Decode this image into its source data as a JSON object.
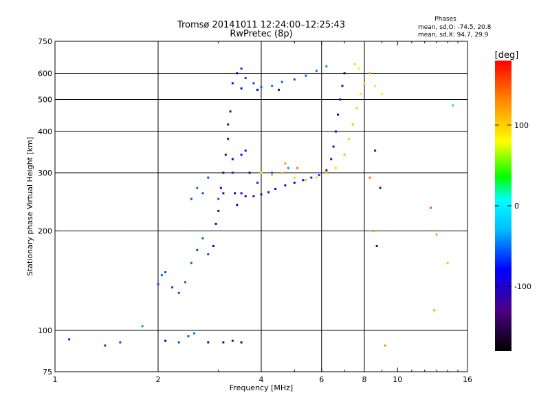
{
  "header": {
    "title_line1": "Tromsø 20141011 12:24:00–12:25:43",
    "title_line2": "RwPretec (8p)",
    "stats_title": "Phases",
    "stats_o": "mean, sd,O:  -74.5, 20.8",
    "stats_x": "mean, sd,X:  94.7, 29.9"
  },
  "chart_data": {
    "type": "scatter",
    "xlabel": "Frequency [MHz]",
    "ylabel": "Stationary phase Virtual Height [km]",
    "x_scale": "log",
    "y_scale": "log",
    "xlim": [
      1,
      16
    ],
    "ylim": [
      75,
      750
    ],
    "x_ticks": [
      1,
      2,
      4,
      6,
      8,
      10,
      16
    ],
    "x_tick_labels": [
      "1",
      "2",
      "4",
      "6",
      "8",
      "10",
      "16"
    ],
    "y_ticks": [
      75,
      100,
      200,
      300,
      400,
      500,
      600,
      750
    ],
    "y_tick_labels": [
      "75",
      "100",
      "200",
      "300",
      "400",
      "500",
      "600",
      "750"
    ],
    "grid_x": [
      2,
      4,
      6,
      8
    ],
    "grid_y": [
      100,
      200,
      300,
      400,
      500,
      600
    ],
    "grid": true,
    "colorbar": {
      "label": "[deg]",
      "range": [
        -180,
        180
      ],
      "ticks": [
        100,
        0,
        -100
      ],
      "tick_labels": [
        "100",
        "0",
        "-100"
      ],
      "colors": [
        "#000000",
        "#4b0082",
        "#0000ff",
        "#00ffff",
        "#00ff00",
        "#ffff00",
        "#ff8c00",
        "#ff0000"
      ]
    },
    "series": [
      {
        "kind": "O-trace low F (F1 cusp)",
        "points": [
          [
            1.1,
            94,
            -70
          ],
          [
            1.4,
            90,
            -65
          ],
          [
            1.55,
            92,
            -60
          ],
          [
            1.8,
            103,
            -40
          ],
          [
            2.0,
            138,
            -60
          ],
          [
            2.05,
            147,
            -55
          ],
          [
            2.1,
            150,
            -60
          ],
          [
            2.2,
            135,
            -65
          ],
          [
            2.3,
            130,
            -60
          ],
          [
            2.4,
            140,
            -55
          ],
          [
            2.5,
            160,
            -55
          ],
          [
            2.6,
            175,
            -60
          ],
          [
            2.7,
            190,
            -55
          ],
          [
            2.8,
            170,
            -60
          ],
          [
            2.9,
            180,
            -90
          ],
          [
            2.95,
            210,
            -100
          ],
          [
            3.0,
            230,
            -110
          ],
          [
            3.0,
            250,
            -60
          ],
          [
            3.05,
            270,
            -90
          ],
          [
            3.1,
            260,
            -110
          ],
          [
            3.1,
            300,
            -115
          ],
          [
            3.15,
            340,
            -120
          ],
          [
            3.2,
            380,
            -100
          ],
          [
            3.2,
            420,
            -115
          ],
          [
            3.25,
            460,
            -120
          ],
          [
            3.3,
            300,
            -70
          ],
          [
            3.35,
            260,
            -80
          ],
          [
            3.4,
            240,
            -100
          ],
          [
            2.5,
            250,
            -60
          ],
          [
            2.6,
            270,
            -55
          ],
          [
            2.7,
            260,
            -60
          ],
          [
            2.8,
            290,
            -60
          ],
          [
            2.55,
            98,
            -50
          ],
          [
            2.45,
            96,
            -55
          ],
          [
            2.3,
            92,
            -60
          ],
          [
            2.1,
            93,
            -80
          ],
          [
            2.8,
            92,
            -100
          ],
          [
            3.1,
            92,
            -110
          ],
          [
            3.3,
            93,
            -120
          ],
          [
            3.5,
            92,
            -140
          ]
        ]
      },
      {
        "kind": "F2 O-trace",
        "points": [
          [
            3.5,
            260,
            -110
          ],
          [
            3.6,
            255,
            -115
          ],
          [
            3.8,
            255,
            -120
          ],
          [
            4.0,
            258,
            -115
          ],
          [
            4.2,
            262,
            -110
          ],
          [
            4.4,
            268,
            -100
          ],
          [
            4.7,
            275,
            -95
          ],
          [
            5.0,
            280,
            -90
          ],
          [
            5.3,
            285,
            -80
          ],
          [
            5.6,
            290,
            -70
          ],
          [
            5.9,
            295,
            -60
          ],
          [
            6.2,
            305,
            -100
          ],
          [
            6.4,
            330,
            -110
          ],
          [
            6.5,
            360,
            -105
          ],
          [
            6.6,
            400,
            -100
          ],
          [
            6.7,
            450,
            -95
          ],
          [
            6.8,
            500,
            -90
          ],
          [
            6.9,
            550,
            -95
          ],
          [
            7.0,
            600,
            -100
          ],
          [
            3.3,
            330,
            -80
          ],
          [
            3.5,
            340,
            -85
          ],
          [
            3.7,
            300,
            -90
          ],
          [
            3.9,
            280,
            -70
          ],
          [
            4.3,
            300,
            -60
          ],
          [
            4.8,
            310,
            -40
          ],
          [
            3.6,
            350,
            -75
          ]
        ]
      },
      {
        "kind": "F2 X-trace",
        "points": [
          [
            4.0,
            300,
            80
          ],
          [
            4.3,
            295,
            100
          ],
          [
            4.6,
            300,
            110
          ],
          [
            5.0,
            290,
            100
          ],
          [
            5.4,
            285,
            110
          ],
          [
            5.8,
            290,
            100
          ],
          [
            6.2,
            300,
            110
          ],
          [
            6.6,
            310,
            100
          ],
          [
            7.0,
            340,
            110
          ],
          [
            7.2,
            380,
            100
          ],
          [
            7.4,
            420,
            110
          ],
          [
            7.6,
            470,
            100
          ],
          [
            7.8,
            520,
            90
          ],
          [
            8.0,
            560,
            100
          ],
          [
            8.3,
            600,
            120
          ],
          [
            8.6,
            550,
            90
          ],
          [
            9.0,
            520,
            80
          ],
          [
            7.5,
            640,
            100
          ],
          [
            7.7,
            620,
            90
          ],
          [
            4.7,
            320,
            130
          ],
          [
            5.1,
            310,
            140
          ]
        ]
      },
      {
        "kind": "Upper echoes ~550-640 km",
        "points": [
          [
            3.3,
            560,
            -75
          ],
          [
            3.4,
            600,
            -80
          ],
          [
            3.5,
            620,
            -70
          ],
          [
            3.6,
            580,
            -65
          ],
          [
            3.8,
            560,
            -60
          ],
          [
            4.0,
            545,
            -55
          ],
          [
            4.3,
            550,
            -50
          ],
          [
            4.6,
            565,
            -55
          ],
          [
            5.0,
            575,
            -60
          ],
          [
            5.4,
            590,
            -55
          ],
          [
            5.8,
            610,
            -50
          ],
          [
            6.2,
            630,
            -45
          ],
          [
            3.5,
            540,
            -85
          ],
          [
            3.9,
            535,
            -80
          ],
          [
            4.5,
            535,
            -75
          ]
        ]
      },
      {
        "kind": "Scattered high-frequency echoes",
        "points": [
          [
            8.3,
            290,
            140
          ],
          [
            8.5,
            200,
            120
          ],
          [
            8.7,
            180,
            -110
          ],
          [
            9.2,
            90,
            130
          ],
          [
            12.5,
            235,
            150
          ],
          [
            13.0,
            195,
            120
          ],
          [
            12.8,
            115,
            40
          ],
          [
            14.0,
            160,
            110
          ],
          [
            14.5,
            480,
            -20
          ],
          [
            8.9,
            270,
            -140
          ],
          [
            8.6,
            350,
            -130
          ]
        ]
      }
    ]
  }
}
